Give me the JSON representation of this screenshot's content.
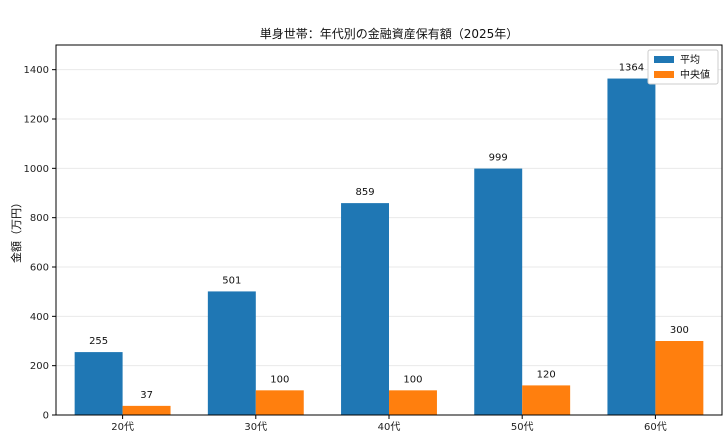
{
  "chart_data": {
    "type": "bar",
    "title": "単身世帯：年代別の金融資産保有額（2025年）",
    "xlabel": "",
    "ylabel": "金額（万円）",
    "categories": [
      "20代",
      "30代",
      "40代",
      "50代",
      "60代"
    ],
    "series": [
      {
        "name": "平均",
        "color": "#1f77b4",
        "values": [
          255,
          501,
          859,
          999,
          1364
        ]
      },
      {
        "name": "中央値",
        "color": "#ff7f0e",
        "values": [
          37,
          100,
          100,
          120,
          300
        ]
      }
    ],
    "ylim": [
      0,
      1500
    ],
    "yticks": [
      0,
      200,
      400,
      600,
      800,
      1000,
      1200,
      1400
    ],
    "grid": true,
    "legend_position": "top-right"
  }
}
